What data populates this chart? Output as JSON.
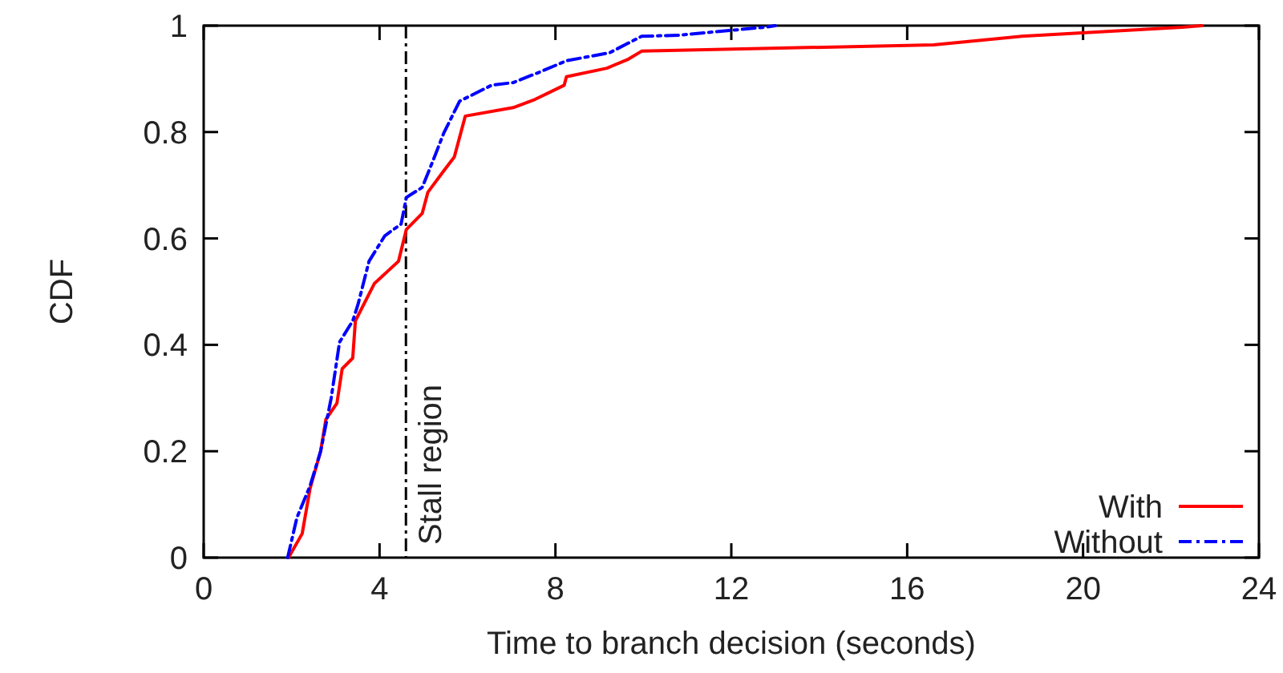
{
  "chart_data": {
    "type": "line",
    "xlabel": "Time to branch decision (seconds)",
    "ylabel": "CDF",
    "xlim": [
      0,
      24
    ],
    "ylim": [
      0,
      1
    ],
    "xticks": [
      0,
      4,
      8,
      12,
      16,
      20,
      24
    ],
    "yticks": [
      0,
      0.2,
      0.4,
      0.6,
      0.8,
      1
    ],
    "grid": false,
    "legend": "bottom right",
    "series": [
      {
        "name": "With",
        "color": "#ff0000",
        "line_style": "solid",
        "x": [
          1.93,
          2.24,
          2.42,
          2.66,
          2.78,
          3.03,
          3.15,
          3.39,
          3.45,
          3.88,
          4.43,
          4.61,
          4.97,
          5.1,
          5.46,
          5.7,
          5.95,
          7.04,
          7.5,
          8.2,
          8.25,
          9.17,
          9.66,
          9.96,
          16.6,
          18.6,
          22.25,
          22.7
        ],
        "values": [
          0.0,
          0.045,
          0.13,
          0.2,
          0.26,
          0.29,
          0.355,
          0.375,
          0.445,
          0.515,
          0.557,
          0.617,
          0.647,
          0.687,
          0.727,
          0.753,
          0.83,
          0.846,
          0.86,
          0.888,
          0.904,
          0.92,
          0.937,
          0.952,
          0.964,
          0.98,
          0.997,
          1.0
        ]
      },
      {
        "name": "Without",
        "color": "#0000ff",
        "line_style": "dashed",
        "x": [
          1.91,
          2.12,
          2.42,
          2.66,
          2.9,
          3.09,
          3.39,
          3.51,
          3.76,
          4.12,
          4.49,
          4.61,
          4.97,
          5.22,
          5.46,
          5.82,
          6.55,
          7.04,
          7.65,
          8.25,
          9.23,
          9.96,
          10.8,
          12.76,
          13.0
        ],
        "values": [
          0.0,
          0.075,
          0.135,
          0.2,
          0.3,
          0.405,
          0.445,
          0.476,
          0.557,
          0.605,
          0.627,
          0.677,
          0.696,
          0.747,
          0.798,
          0.858,
          0.888,
          0.893,
          0.913,
          0.934,
          0.949,
          0.98,
          0.982,
          0.997,
          1.0
        ]
      }
    ],
    "ref_lines": [
      {
        "axis": "x",
        "value": 4.6,
        "label": "Stall region",
        "color": "#000000",
        "line_style": "dashed"
      }
    ]
  }
}
